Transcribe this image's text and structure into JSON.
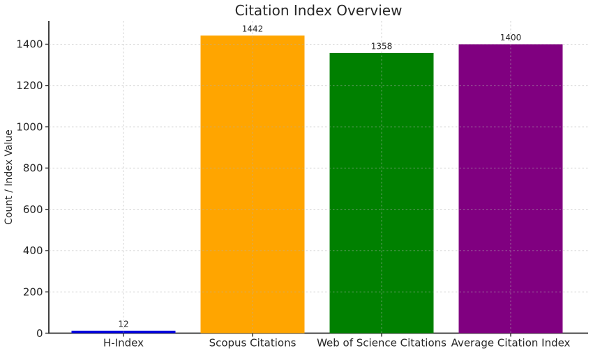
{
  "chart_data": {
    "type": "bar",
    "title": "Citation Index Overview",
    "xlabel": "",
    "ylabel": "Count / Index Value",
    "categories": [
      "H-Index",
      "Scopus Citations",
      "Web of Science Citations",
      "Average Citation Index"
    ],
    "values": [
      12,
      1442,
      1358,
      1400
    ],
    "value_labels": [
      "12",
      "1442",
      "1358",
      "1400"
    ],
    "bar_colors": [
      "#0000dd",
      "#ffa500",
      "#008000",
      "#800080"
    ],
    "yticks": [
      0,
      200,
      400,
      600,
      800,
      1000,
      1200,
      1400
    ],
    "ytick_labels": [
      "0",
      "200",
      "400",
      "600",
      "800",
      "1000",
      "1200",
      "1400"
    ],
    "ylim": [
      0,
      1513
    ],
    "grid": "dashed horizontal and vertical gridlines drawn over bars",
    "legend": "none",
    "grid_color": "#b0b0b0",
    "axis_color": "#2b2b2b",
    "text_color": "#262626",
    "background_color": "#ffffff"
  }
}
